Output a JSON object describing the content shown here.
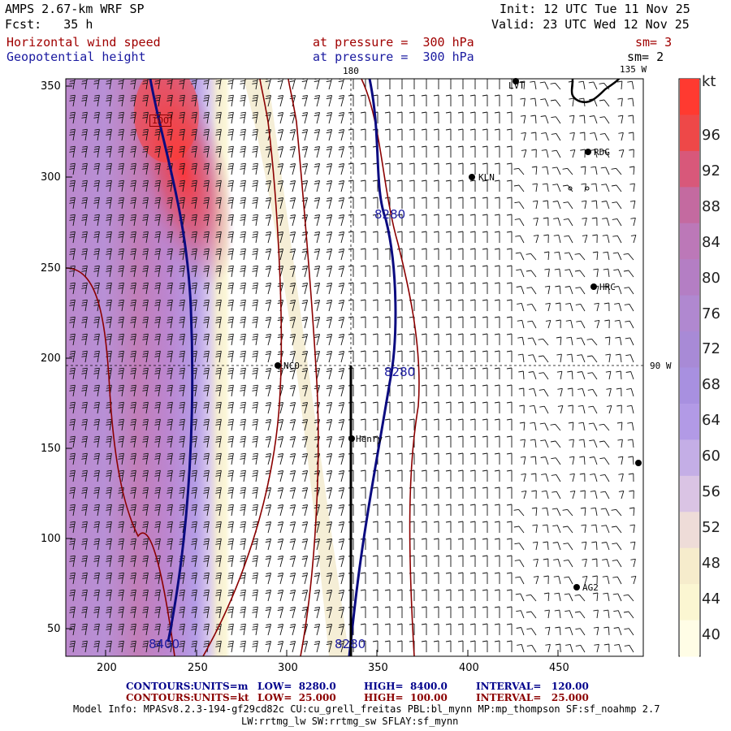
{
  "header": {
    "model": "AMPS 2.67-km WRF SP",
    "fcst": "Fcst:   35 h",
    "init": "Init: 12 UTC Tue 11 Nov 25",
    "valid": "Valid: 23 UTC Wed 12 Nov 25",
    "field1": "Horizontal wind speed",
    "field2": "Geopotential height",
    "press1": "at pressure =  300 hPa",
    "press2": "at pressure =  300 hPa",
    "sm1": "sm= 3",
    "sm2": "sm= 2"
  },
  "map": {
    "lon_label_top": "180",
    "lon_label_top2": "135 W",
    "lon_label_right": "90 W",
    "x_ticks": [
      "200",
      "250",
      "300",
      "350",
      "400",
      "450"
    ],
    "y_ticks": [
      "350",
      "300",
      "250",
      "200",
      "150",
      "100",
      "50"
    ],
    "stations": [
      "LVT",
      "RDG",
      "KLN",
      "HRC",
      "NCO",
      "Henry",
      "AG2"
    ],
    "contour_labels": [
      "8280",
      "8280",
      "8280",
      "8400",
      "100"
    ]
  },
  "colorbar": {
    "unit": "kt",
    "labels": [
      "96",
      "92",
      "88",
      "84",
      "80",
      "76",
      "72",
      "68",
      "64",
      "60",
      "56",
      "52",
      "48",
      "44",
      "40"
    ],
    "colors": [
      "#ff3a30",
      "#ee4848",
      "#d8587a",
      "#c46aa0",
      "#bc78b8",
      "#b47ec4",
      "#b088d0",
      "#a88ad6",
      "#a890e0",
      "#b29ae6",
      "#c4aee6",
      "#dac4e4",
      "#eedcd8",
      "#f6eccc",
      "#fbf6d2",
      "#fffde6"
    ]
  },
  "footer": {
    "contours1_label": "CONTOURS:",
    "contours1_units": "UNITS=m",
    "contours1_low": "LOW=  8280.0",
    "contours1_high": "HIGH=  8400.0",
    "contours1_interval": "INTERVAL=   120.00",
    "contours2_label": "CONTOURS:",
    "contours2_units": "UNITS=kt",
    "contours2_low": "LOW=  25.000",
    "contours2_high": "HIGH=  100.00",
    "contours2_interval": "INTERVAL=   25.000",
    "model_info1": "Model Info: MPASv8.2.3-194-gf29cd82c CU:cu_grell_freitas PBL:bl_mynn MP:mp_thompson SF:sf_noahmp 2.7",
    "model_info2": "LW:rrtmg_lw SW:rrtmg_sw SFLAY:sf_mynn"
  }
}
